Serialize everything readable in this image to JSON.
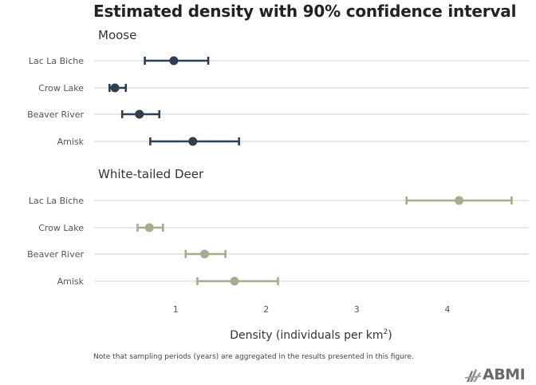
{
  "chart_data": {
    "type": "errorbar",
    "title": "Estimated density with 90% confidence interval",
    "xlabel": "Density (individuals per km",
    "xlabel_sup": "2",
    "xlabel_close": ")",
    "xlim": [
      0.1,
      4.9
    ],
    "xticks": [
      1,
      2,
      3,
      4
    ],
    "grid": "horizontal",
    "panels": [
      {
        "name": "Moose",
        "color": "#2e3f52",
        "rows": [
          {
            "site": "Lac La Biche",
            "est": 0.98,
            "lo": 0.66,
            "hi": 1.36
          },
          {
            "site": "Crow Lake",
            "est": 0.33,
            "lo": 0.27,
            "hi": 0.45
          },
          {
            "site": "Beaver River",
            "est": 0.6,
            "lo": 0.41,
            "hi": 0.82
          },
          {
            "site": "Amisk",
            "est": 1.19,
            "lo": 0.72,
            "hi": 1.7
          }
        ]
      },
      {
        "name": "White-tailed Deer",
        "color": "#a8ac8f",
        "rows": [
          {
            "site": "Lac La Biche",
            "est": 4.13,
            "lo": 3.55,
            "hi": 4.71
          },
          {
            "site": "Crow Lake",
            "est": 0.71,
            "lo": 0.58,
            "hi": 0.86
          },
          {
            "site": "Beaver River",
            "est": 1.32,
            "lo": 1.11,
            "hi": 1.55
          },
          {
            "site": "Amisk",
            "est": 1.65,
            "lo": 1.24,
            "hi": 2.13
          }
        ]
      }
    ]
  },
  "note": "Note that sampling periods (years) are aggregated in the results presented in this figure.",
  "logo": {
    "text": "ABMI"
  }
}
